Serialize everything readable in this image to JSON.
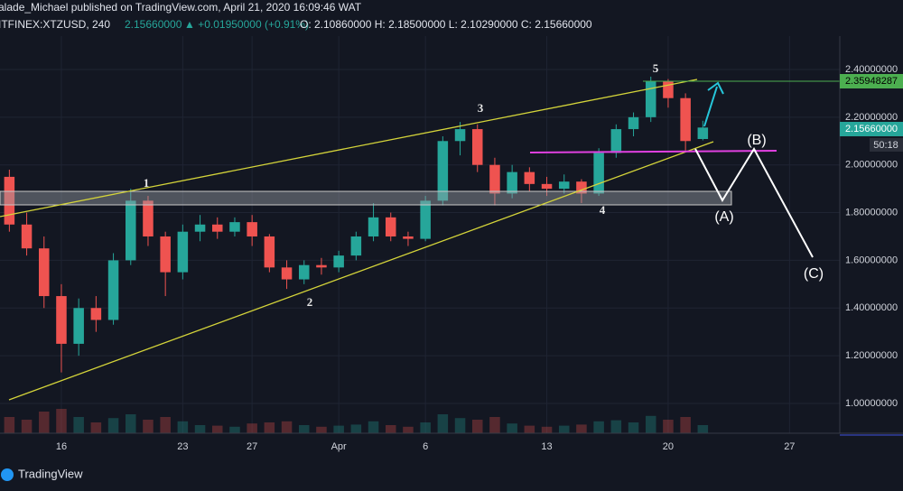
{
  "header": {
    "publisher": "alade_Michael published on TradingView.com, April 21, 2020 16:09:46 WAT",
    "symbol": "ITFINEX:XTZUSD, 240",
    "last": "2.15660000",
    "change": "▲ +0.01950000 (+0.91%)",
    "ohlc": "O: 2.10860000 H: 2.18500000 L: 2.10290000 C: 2.15660000"
  },
  "chart_data": {
    "type": "candlestick",
    "x": [
      13,
      14,
      15,
      16,
      17,
      18,
      19,
      20,
      21,
      22,
      23,
      24,
      25,
      26,
      27,
      28,
      29,
      30,
      31,
      32,
      33,
      34,
      35,
      36,
      37,
      38,
      39,
      40,
      41,
      42,
      43,
      44,
      45,
      46,
      47,
      48,
      49,
      50,
      51,
      52,
      53
    ],
    "candles": [
      [
        1.95,
        1.98,
        1.72,
        1.75
      ],
      [
        1.75,
        1.8,
        1.62,
        1.65
      ],
      [
        1.65,
        1.7,
        1.4,
        1.45
      ],
      [
        1.45,
        1.5,
        1.13,
        1.25
      ],
      [
        1.25,
        1.44,
        1.2,
        1.4
      ],
      [
        1.4,
        1.45,
        1.3,
        1.35
      ],
      [
        1.35,
        1.63,
        1.33,
        1.6
      ],
      [
        1.6,
        1.9,
        1.58,
        1.85
      ],
      [
        1.85,
        1.87,
        1.66,
        1.7
      ],
      [
        1.7,
        1.72,
        1.45,
        1.55
      ],
      [
        1.55,
        1.75,
        1.52,
        1.72
      ],
      [
        1.72,
        1.79,
        1.68,
        1.75
      ],
      [
        1.75,
        1.78,
        1.69,
        1.72
      ],
      [
        1.72,
        1.78,
        1.7,
        1.76
      ],
      [
        1.76,
        1.79,
        1.66,
        1.7
      ],
      [
        1.7,
        1.71,
        1.55,
        1.57
      ],
      [
        1.57,
        1.6,
        1.48,
        1.52
      ],
      [
        1.52,
        1.6,
        1.5,
        1.58
      ],
      [
        1.58,
        1.61,
        1.54,
        1.57
      ],
      [
        1.57,
        1.64,
        1.55,
        1.62
      ],
      [
        1.62,
        1.72,
        1.6,
        1.7
      ],
      [
        1.7,
        1.84,
        1.68,
        1.78
      ],
      [
        1.78,
        1.8,
        1.68,
        1.7
      ],
      [
        1.7,
        1.72,
        1.66,
        1.69
      ],
      [
        1.69,
        1.87,
        1.68,
        1.85
      ],
      [
        1.85,
        2.12,
        1.83,
        2.1
      ],
      [
        2.1,
        2.18,
        2.04,
        2.15
      ],
      [
        2.15,
        2.17,
        1.97,
        2.0
      ],
      [
        2.0,
        2.03,
        1.83,
        1.88
      ],
      [
        1.88,
        2.0,
        1.86,
        1.97
      ],
      [
        1.97,
        1.99,
        1.89,
        1.92
      ],
      [
        1.92,
        1.95,
        1.87,
        1.9
      ],
      [
        1.9,
        1.96,
        1.88,
        1.93
      ],
      [
        1.93,
        1.94,
        1.84,
        1.88
      ],
      [
        1.88,
        2.07,
        1.87,
        2.05
      ],
      [
        2.05,
        2.17,
        2.03,
        2.15
      ],
      [
        2.15,
        2.22,
        2.12,
        2.2
      ],
      [
        2.2,
        2.37,
        2.18,
        2.35
      ],
      [
        2.35,
        2.36,
        2.24,
        2.28
      ],
      [
        2.28,
        2.3,
        2.06,
        2.1
      ],
      [
        2.1086,
        2.185,
        2.1029,
        2.1566
      ]
    ],
    "volumes": [
      30,
      25,
      40,
      45,
      30,
      20,
      28,
      35,
      25,
      30,
      22,
      15,
      14,
      12,
      18,
      20,
      22,
      15,
      12,
      14,
      16,
      22,
      15,
      12,
      20,
      35,
      28,
      25,
      30,
      18,
      14,
      12,
      14,
      16,
      22,
      24,
      20,
      32,
      25,
      30,
      15
    ],
    "volume_lim": [
      0,
      100
    ],
    "up_color": "#26a69a",
    "down_color": "#ef5350",
    "xlim": [
      12.46,
      60.9
    ],
    "xticks": [
      16,
      23,
      27,
      {
        "value": 32,
        "label": "Apr"
      },
      {
        "value": 37,
        "label": "6"
      },
      {
        "value": 44,
        "label": "13"
      },
      {
        "value": 51,
        "label": "20"
      },
      {
        "value": 58,
        "label": "27"
      }
    ],
    "ylim": [
      0.875,
      2.54
    ],
    "yticks": [
      {
        "value": 1.0,
        "label": "1.00000000"
      },
      {
        "value": 1.2,
        "label": "1.20000000"
      },
      {
        "value": 1.4,
        "label": "1.40000000"
      },
      {
        "value": 1.6,
        "label": "1.60000000"
      },
      {
        "value": 1.8,
        "label": "1.80000000"
      },
      {
        "value": 2.0,
        "label": "2.00000000"
      },
      {
        "value": 2.2,
        "label": "2.20000000"
      },
      {
        "value": 2.4,
        "label": "2.40000000"
      }
    ],
    "grid": true
  },
  "price_labels": {
    "target": "2.35948287",
    "current": "2.15660000",
    "countdown": "50:18"
  },
  "annotations": {
    "w1": "1",
    "w2": "2",
    "w3": "3",
    "w4": "4",
    "w5": "5",
    "a": "(A)",
    "b": "(B)",
    "c": "(C)"
  },
  "footer": {
    "logo": "TradingView"
  }
}
